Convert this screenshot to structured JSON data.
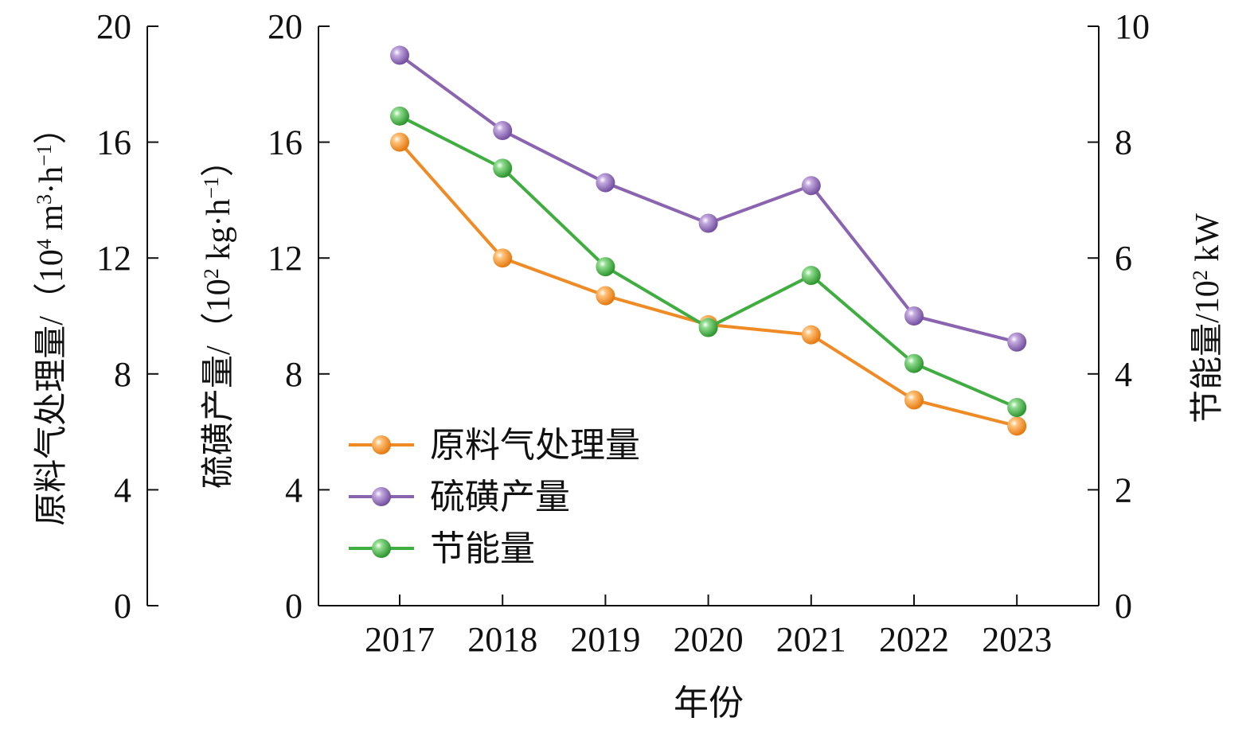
{
  "chart_data": {
    "type": "line",
    "categories": [
      "2017",
      "2018",
      "2019",
      "2020",
      "2021",
      "2022",
      "2023"
    ],
    "xlabel": "年份",
    "axes": {
      "left_outer": {
        "label_main": "原料气处理量/（10",
        "label_sup1": "4",
        "label_mid": " m",
        "label_sup2": "3",
        "label_mid2": "·h",
        "label_sup3": "−1",
        "label_end": "）",
        "ylim": [
          0,
          20
        ],
        "ticks": [
          "0",
          "4",
          "8",
          "12",
          "16",
          "20"
        ]
      },
      "left_inner": {
        "label_main": "硫磺产量/（10",
        "label_sup1": "2",
        "label_mid": " kg·h",
        "label_sup2": "−1",
        "label_end": "）",
        "ylim": [
          0,
          20
        ],
        "ticks": [
          "0",
          "4",
          "8",
          "12",
          "16",
          "20"
        ]
      },
      "right": {
        "label_main": "节能量/10",
        "label_sup1": "2",
        "label_end": " kW",
        "ylim": [
          0,
          10
        ],
        "ticks": [
          "0",
          "2",
          "4",
          "6",
          "8",
          "10"
        ]
      }
    },
    "series": [
      {
        "name": "原料气处理量",
        "axis": "left_outer",
        "color": "#f08a24",
        "values": [
          16.0,
          12.0,
          10.7,
          9.7,
          9.35,
          7.1,
          6.2
        ]
      },
      {
        "name": "硫磺产量",
        "axis": "left_inner",
        "color": "#8a64b0",
        "values": [
          19.0,
          16.4,
          14.6,
          13.2,
          14.5,
          10.0,
          9.1
        ]
      },
      {
        "name": "节能量",
        "axis": "right",
        "color": "#3fad3f",
        "values": [
          8.45,
          7.55,
          5.85,
          4.8,
          5.7,
          4.18,
          3.42
        ]
      }
    ],
    "legend_position": "lower-left",
    "grid": false
  }
}
